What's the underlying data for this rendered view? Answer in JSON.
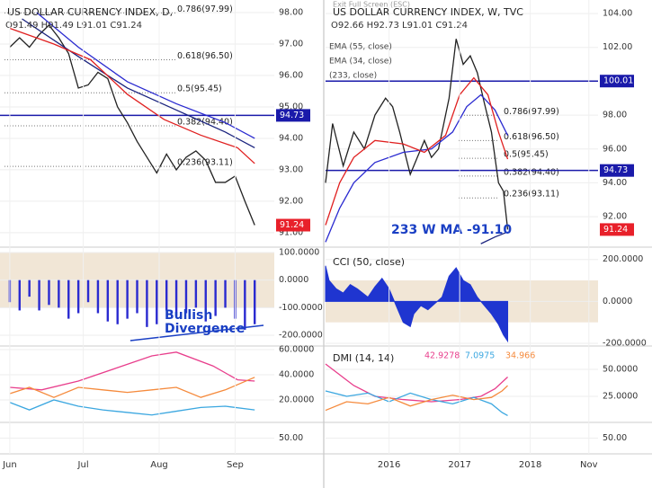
{
  "screen_text": "Exit Full Screen (ESC)",
  "chart_data": [
    {
      "type": "line",
      "title": "US DOLLAR CURRENCY INDEX, D,",
      "ohlc": "O91.49 H91.49 L91.01 C91.24",
      "xlim": [
        148,
        260
      ],
      "ylim": [
        90.54,
        98.4
      ],
      "yticks": [
        {
          "value": 98,
          "label": "98.00"
        },
        {
          "value": 97,
          "label": "97.00"
        },
        {
          "value": 96,
          "label": "96.00"
        },
        {
          "value": 95,
          "label": "95.00"
        },
        {
          "value": 94,
          "label": "94.00"
        },
        {
          "value": 93,
          "label": "93.00"
        },
        {
          "value": 92,
          "label": "92.00"
        },
        {
          "value": 91,
          "label": "91.00"
        }
      ],
      "price_lines": [
        94.73
      ],
      "price_line_color": "#1a1aaa",
      "last_price": 91.24,
      "last_price_color": "#e8202a",
      "fib_levels": [
        {
          "value": 97.99,
          "label": "0.786(97.99)"
        },
        {
          "value": 96.5,
          "label": "0.618(96.50)"
        },
        {
          "value": 95.45,
          "label": "0.5(95.45)"
        },
        {
          "value": 94.4,
          "label": "0.382(94.40)"
        },
        {
          "value": 93.11,
          "label": "0.236(93.11)"
        }
      ],
      "series": [
        {
          "color": "#222222",
          "x": [
            152,
            156,
            160,
            164,
            168,
            172,
            176,
            180,
            184,
            188,
            192,
            196,
            200,
            204,
            208,
            212,
            216,
            220,
            224,
            228,
            232,
            236,
            240,
            244,
            248,
            252
          ],
          "values": [
            96.9,
            97.2,
            96.9,
            97.3,
            97.6,
            97.2,
            96.7,
            95.6,
            95.7,
            96.1,
            95.9,
            95.0,
            94.5,
            93.9,
            93.4,
            92.9,
            93.5,
            93.0,
            93.4,
            93.6,
            93.3,
            92.6,
            92.6,
            92.8,
            92.0,
            91.24
          ]
        },
        {
          "color": "#2a2ad0",
          "x": [
            163,
            180,
            200,
            220,
            240,
            252
          ],
          "values": [
            98.0,
            96.9,
            95.8,
            95.1,
            94.5,
            94.0
          ]
        },
        {
          "color": "#1a237e",
          "x": [
            157,
            180,
            200,
            220,
            240,
            252
          ],
          "values": [
            97.8,
            96.6,
            95.6,
            94.9,
            94.2,
            93.7
          ]
        },
        {
          "color": "#e02020",
          "x": [
            152,
            170,
            185,
            200,
            215,
            230,
            245,
            252
          ],
          "values": [
            97.5,
            97.0,
            96.5,
            95.4,
            94.6,
            94.1,
            93.7,
            93.2
          ]
        }
      ]
    },
    {
      "type": "bar",
      "xlim": [
        148,
        260
      ],
      "ylim": [
        -239,
        109.8
      ],
      "band": [
        -100,
        100
      ],
      "yticks": [
        {
          "value": 100,
          "label": "100.0000"
        },
        {
          "value": 0,
          "label": "0.0000"
        },
        {
          "value": -100,
          "label": "-100.0000"
        },
        {
          "value": -200,
          "label": "-200.0000"
        }
      ],
      "annotations": [
        "Bullish",
        "Divergence"
      ],
      "trendlines": [
        {
          "x": [
            201.2,
            255.6
          ],
          "values": [
            -219.5,
            -164
          ]
        }
      ],
      "series": [
        {
          "color": "#2a2ad0",
          "x": [
            152,
            156,
            160,
            164,
            168,
            172,
            176,
            180,
            184,
            188,
            192,
            196,
            200,
            204,
            208,
            212,
            216,
            220,
            224,
            228,
            232,
            236,
            240,
            244,
            248,
            252
          ],
          "values": [
            -80,
            -110,
            -60,
            -110,
            -90,
            -100,
            -140,
            -120,
            -80,
            -120,
            -150,
            -160,
            -140,
            -120,
            -170,
            -160,
            -110,
            -130,
            -120,
            -100,
            -150,
            -130,
            -100,
            -140,
            -180,
            -160
          ]
        }
      ]
    },
    {
      "type": "line",
      "xlim": [
        148,
        260
      ],
      "ylim": [
        2.1,
        62.9
      ],
      "yticks": [
        {
          "value": 60,
          "label": "60.0000"
        },
        {
          "value": 40,
          "label": "40.0000"
        },
        {
          "value": 20,
          "label": "20.0000"
        }
      ],
      "series": [
        {
          "color": "#e83e8c",
          "x": [
            152,
            165,
            180,
            195,
            210,
            220,
            235,
            245,
            252
          ],
          "values": [
            30,
            28,
            35,
            45,
            55,
            58,
            47,
            36,
            35
          ]
        },
        {
          "color": "#f58a3c",
          "x": [
            152,
            160,
            170,
            180,
            190,
            200,
            210,
            220,
            230,
            240,
            252
          ],
          "values": [
            25,
            30,
            22,
            30,
            28,
            26,
            28,
            30,
            22,
            28,
            38
          ]
        },
        {
          "color": "#3ba7e0",
          "x": [
            152,
            160,
            170,
            180,
            190,
            200,
            210,
            220,
            230,
            240,
            252
          ],
          "values": [
            18,
            12,
            20,
            15,
            12,
            10,
            8,
            11,
            14,
            15,
            12
          ]
        }
      ]
    },
    {
      "type": "line",
      "xlim": [
        148,
        260
      ],
      "ylim": [
        35,
        65
      ],
      "yticks": [
        {
          "value": 50,
          "label": "50.00"
        }
      ],
      "xticks": [
        {
          "value": 152,
          "label": "Jun"
        },
        {
          "value": 182,
          "label": "Jul"
        },
        {
          "value": 213,
          "label": "Aug"
        },
        {
          "value": 244,
          "label": "Sep"
        }
      ],
      "series": []
    },
    {
      "type": "line",
      "title": "US DOLLAR CURRENCY INDEX, W, TVC",
      "ohlc": "O92.66 H92.73 L91.01 C91.24",
      "xlim": [
        2015.1,
        2018.96
      ],
      "ylim": [
        90.2,
        104.8
      ],
      "yticks": [
        {
          "value": 104,
          "label": "104.00"
        },
        {
          "value": 102,
          "label": "102.00"
        },
        {
          "value": 100,
          "label": "100.00"
        },
        {
          "value": 98,
          "label": "98.00"
        },
        {
          "value": 96,
          "label": "96.00"
        },
        {
          "value": 94,
          "label": "94.00"
        },
        {
          "value": 92,
          "label": "92.00"
        }
      ],
      "price_lines": [
        100.01,
        94.73
      ],
      "price_line_color": "#1a1aaa",
      "last_price": 91.24,
      "last_price_color": "#e8202a",
      "fib_levels": [
        {
          "value": 97.99,
          "label": "0.786(97.99)"
        },
        {
          "value": 96.5,
          "label": "0.618(96.50)"
        },
        {
          "value": 95.45,
          "label": "0.5(95.45)"
        },
        {
          "value": 94.4,
          "label": "0.382(94.40)"
        },
        {
          "value": 93.11,
          "label": "0.236(93.11)"
        }
      ],
      "annotations": [
        "233 W MA -91.10"
      ],
      "series": [
        {
          "color": "#222222",
          "x": [
            2015.1,
            2015.2,
            2015.35,
            2015.5,
            2015.65,
            2015.8,
            2015.95,
            2016.05,
            2016.15,
            2016.3,
            2016.4,
            2016.5,
            2016.6,
            2016.7,
            2016.85,
            2016.95,
            2017.05,
            2017.15,
            2017.25,
            2017.35,
            2017.45,
            2017.55,
            2017.62,
            2017.68
          ],
          "values": [
            94,
            97.5,
            95,
            97,
            96,
            98,
            99,
            98.5,
            97,
            94.5,
            95.5,
            96.5,
            95.5,
            96,
            99,
            102.5,
            101,
            101.5,
            100.5,
            98.7,
            97,
            94,
            93.5,
            91.24
          ]
        },
        {
          "name": "EMA (55, close)",
          "color": "#2a2ad0",
          "x": [
            2015.1,
            2015.3,
            2015.5,
            2015.8,
            2016.2,
            2016.6,
            2016.9,
            2017.1,
            2017.3,
            2017.5,
            2017.68
          ],
          "values": [
            90.5,
            92.5,
            94,
            95.2,
            95.8,
            96,
            97,
            98.5,
            99.2,
            98.3,
            96.8
          ]
        },
        {
          "name": "EMA (34, close)",
          "color": "#e02020",
          "x": [
            2015.1,
            2015.3,
            2015.5,
            2015.8,
            2016.2,
            2016.5,
            2016.8,
            2017.0,
            2017.2,
            2017.4,
            2017.55,
            2017.68
          ],
          "values": [
            91.5,
            94,
            95.5,
            96.5,
            96.3,
            95.8,
            96.8,
            99.2,
            100.2,
            99.2,
            97,
            95.4
          ]
        },
        {
          "name": "(233, close)",
          "color": "#1a237e",
          "x": [
            2017.3,
            2017.5,
            2017.68
          ],
          "values": [
            90.4,
            90.8,
            91.1
          ]
        }
      ]
    },
    {
      "type": "area",
      "title": "CCI (50, close)",
      "xlim": [
        2015.1,
        2018.96
      ],
      "ylim": [
        -213,
        246
      ],
      "band": [
        -100,
        100
      ],
      "yticks": [
        {
          "value": 200,
          "label": "200.0000"
        },
        {
          "value": 0,
          "label": "0.0000"
        },
        {
          "value": -200,
          "label": "-200.0000"
        }
      ],
      "series": [
        {
          "color": "#1f35d0",
          "x": [
            2015.1,
            2015.15,
            2015.25,
            2015.35,
            2015.45,
            2015.55,
            2015.7,
            2015.8,
            2015.9,
            2016.0,
            2016.1,
            2016.2,
            2016.3,
            2016.35,
            2016.45,
            2016.55,
            2016.65,
            2016.75,
            2016.85,
            2016.95,
            2017.05,
            2017.15,
            2017.25,
            2017.35,
            2017.45,
            2017.55,
            2017.62,
            2017.68
          ],
          "values": [
            170,
            100,
            60,
            40,
            80,
            60,
            20,
            70,
            110,
            60,
            -20,
            -100,
            -120,
            -60,
            -20,
            -40,
            -10,
            20,
            120,
            160,
            100,
            80,
            20,
            -20,
            -60,
            -110,
            -160,
            -190
          ]
        }
      ]
    },
    {
      "type": "line",
      "title": "DMI (14, 14)",
      "show_last_values": true,
      "xlim": [
        2015.1,
        2018.96
      ],
      "ylim": [
        0.8,
        71.7
      ],
      "yticks": [
        {
          "value": 50,
          "label": "50.0000"
        },
        {
          "value": 25,
          "label": "25.0000"
        }
      ],
      "series": [
        {
          "color": "#e83e8c",
          "x": [
            2015.1,
            2015.3,
            2015.5,
            2015.8,
            2016.2,
            2016.6,
            2017.0,
            2017.3,
            2017.5,
            2017.68
          ],
          "values": [
            55,
            45,
            35,
            25,
            22,
            20,
            22,
            25,
            32,
            42.9278
          ]
        },
        {
          "color": "#3ba7e0",
          "x": [
            2015.1,
            2015.4,
            2015.7,
            2016.0,
            2016.3,
            2016.6,
            2016.9,
            2017.2,
            2017.45,
            2017.6,
            2017.68
          ],
          "values": [
            30,
            25,
            28,
            20,
            28,
            22,
            18,
            24,
            18,
            10,
            7.0975
          ]
        },
        {
          "color": "#f58a3c",
          "x": [
            2015.1,
            2015.4,
            2015.7,
            2016.0,
            2016.3,
            2016.6,
            2016.9,
            2017.2,
            2017.45,
            2017.6,
            2017.68
          ],
          "values": [
            12,
            20,
            18,
            24,
            16,
            22,
            26,
            22,
            24,
            30,
            34.966
          ]
        }
      ]
    },
    {
      "type": "line",
      "xlim": [
        2015.1,
        2018.96
      ],
      "ylim": [
        35,
        65
      ],
      "yticks": [
        {
          "value": 50,
          "label": "50.00"
        }
      ],
      "xticks": [
        2016,
        2017,
        2018,
        {
          "value": 2018.83,
          "label": "Nov"
        }
      ],
      "series": []
    }
  ]
}
